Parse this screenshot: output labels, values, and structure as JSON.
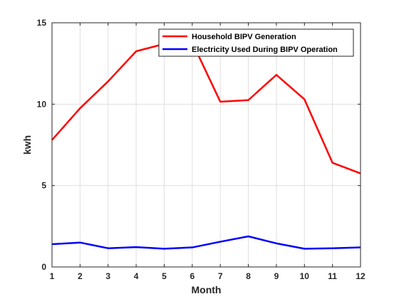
{
  "chart_data": {
    "type": "line",
    "title": "",
    "xlabel": "Month",
    "ylabel": "kwh",
    "x": [
      1,
      2,
      3,
      4,
      5,
      6,
      7,
      8,
      9,
      10,
      11,
      12
    ],
    "xlim": [
      1,
      12
    ],
    "ylim": [
      0,
      15
    ],
    "x_ticks": [
      1,
      2,
      3,
      4,
      5,
      6,
      7,
      8,
      9,
      10,
      11,
      12
    ],
    "y_ticks": [
      0,
      5,
      10,
      15
    ],
    "grid": true,
    "legend_position": "top-right",
    "series": [
      {
        "name": "Household BIPV Generation",
        "color": "#ff0000",
        "values": [
          7.8,
          9.75,
          11.4,
          13.25,
          13.7,
          13.8,
          10.15,
          10.25,
          11.8,
          10.3,
          6.4,
          5.75
        ]
      },
      {
        "name": "Electricity Used During BIPV Operation",
        "color": "#0000ff",
        "values": [
          1.4,
          1.5,
          1.15,
          1.22,
          1.12,
          1.2,
          1.55,
          1.88,
          1.45,
          1.12,
          1.15,
          1.2
        ]
      }
    ]
  }
}
